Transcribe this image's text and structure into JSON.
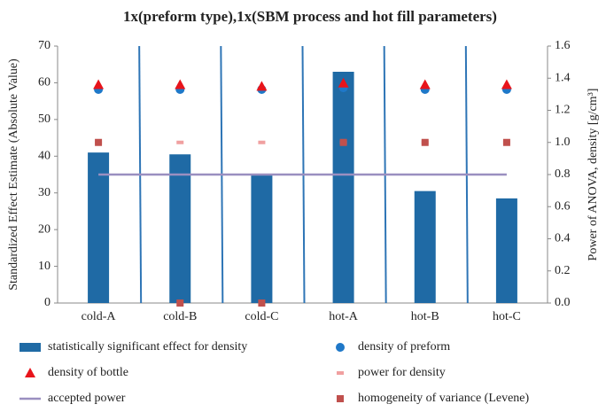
{
  "chart_data": {
    "type": "bar",
    "title": "1x(preform type),1x(SBM process and hot fill parameters)",
    "y_label": "Standardized Effect Estimate (Absolute Value)",
    "y2_label": "Power of ANOVA, density [g/cm³]",
    "categories": [
      "cold-A",
      "cold-B",
      "cold-C",
      "hot-A",
      "hot-B",
      "hot-C"
    ],
    "ylim": [
      0,
      70
    ],
    "yticks": [
      0,
      10,
      20,
      30,
      40,
      50,
      60,
      70
    ],
    "y2lim": [
      0,
      1.6
    ],
    "y2ticks": [
      {
        "value": 0,
        "label": "0.0"
      },
      {
        "value": 0.2,
        "label": "0.2"
      },
      {
        "value": 0.4,
        "label": "0.4"
      },
      {
        "value": 0.6,
        "label": "0.6"
      },
      {
        "value": 0.8,
        "label": "0.8"
      },
      {
        "value": 1.0,
        "label": "1.0"
      },
      {
        "value": 1.2,
        "label": "1.2"
      },
      {
        "value": 1.4,
        "label": "1.4"
      },
      {
        "value": 1.6,
        "label": "1.6"
      }
    ],
    "series": [
      {
        "name": "statistically significant effect for density",
        "type": "bar",
        "color": "#1f6aa5",
        "values": [
          41,
          40.5,
          35,
          63,
          30.5,
          28.5
        ]
      },
      {
        "name": "density of preform",
        "type": "scatter",
        "marker": "circle",
        "axis": "y2",
        "color": "#1f78c8",
        "values": [
          1.33,
          1.33,
          1.33,
          1.34,
          1.33,
          1.33
        ]
      },
      {
        "name": "density of bottle",
        "type": "scatter",
        "marker": "triangle",
        "axis": "y2",
        "color": "#e8141b",
        "values": [
          1.36,
          1.36,
          1.35,
          1.37,
          1.36,
          1.36
        ]
      },
      {
        "name": "power for density",
        "type": "scatter",
        "marker": "dash",
        "axis": "y2",
        "color": "#f0a0a0",
        "values": [
          1.0,
          1.0,
          1.0,
          1.0,
          1.0,
          1.0
        ]
      },
      {
        "name": "accepted power",
        "type": "line",
        "axis": "y2",
        "color": "#9a8fc0",
        "values": [
          0.8,
          0.8,
          0.8,
          0.8,
          0.8,
          0.8
        ]
      },
      {
        "name": "homogeneity of variance (Levene)",
        "type": "scatter",
        "marker": "square",
        "axis": "y2",
        "color": "#c0504d",
        "values": [
          1.0,
          0,
          0,
          1.0,
          1.0,
          1.0
        ]
      }
    ]
  }
}
